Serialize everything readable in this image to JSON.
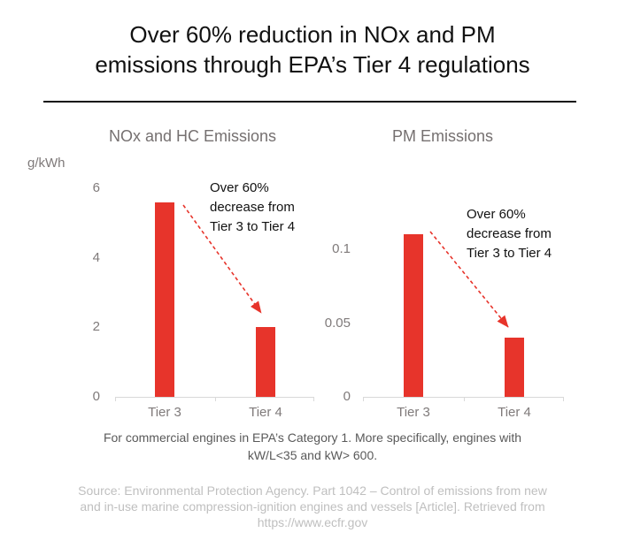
{
  "header": {
    "title": "Over 60% reduction in NOx and PM\nemissions through EPA’s Tier 4 regulations"
  },
  "footer": {
    "note": "For commercial engines in EPA’s Category 1. More specifically, engines with\nkW/L<35 and kW> 600.",
    "source": "Source: Environmental Protection Agency. Part 1042 – Control of emissions from new\nand in-use marine compression-ignition engines and vessels [Article]. Retrieved from\nhttps://www.ecfr.gov"
  },
  "colors": {
    "bar_red": "#e7342b",
    "arrow_red": "#e7342b",
    "axis_gray": "#d9d9d9",
    "label_gray": "#7f7a7a",
    "chart_title_gray": "#757070",
    "note_gray": "#595959",
    "source_gray": "#bfbfbf",
    "title_black": "#111111"
  },
  "chart_data": [
    {
      "type": "bar",
      "title": "NOx and HC Emissions",
      "unit_label": "g/kWh",
      "categories": [
        "Tier 3",
        "Tier 4"
      ],
      "values": [
        5.6,
        2.0
      ],
      "yticks": [
        0,
        2,
        4,
        6
      ],
      "ylim": [
        0,
        6
      ],
      "grid": false,
      "legend": "none",
      "annotation": "Over 60%\ndecrease from\nTier 3 to Tier 4"
    },
    {
      "type": "bar",
      "title": "PM Emissions",
      "unit_label": "",
      "categories": [
        "Tier 3",
        "Tier 4"
      ],
      "values": [
        0.11,
        0.04
      ],
      "yticks": [
        0,
        0.05,
        0.1
      ],
      "ylim": [
        0,
        0.115
      ],
      "grid": false,
      "legend": "none",
      "annotation": "Over 60%\ndecrease from\nTier 3 to Tier 4"
    }
  ]
}
